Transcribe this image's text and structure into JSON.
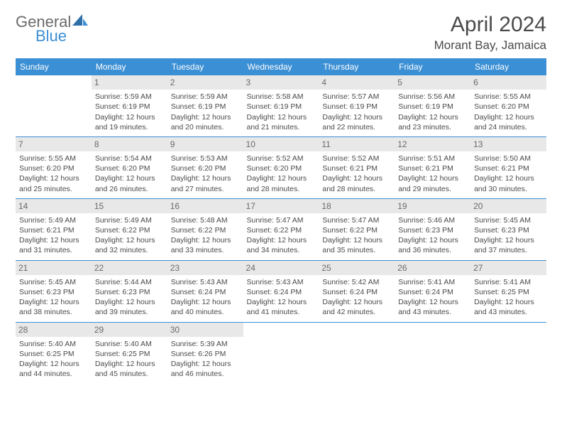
{
  "brand": {
    "word1": "General",
    "word2": "Blue"
  },
  "title": "April 2024",
  "location": "Morant Bay, Jamaica",
  "colors": {
    "header_bg": "#3b8fd4",
    "header_text": "#ffffff",
    "daynum_bg": "#e8e8e8",
    "daynum_text": "#6a6a6a",
    "cell_border": "#3b8fd4",
    "body_text": "#4a4a4a",
    "logo_gray": "#6a6a6a",
    "logo_blue": "#3b8fd4",
    "background": "#ffffff"
  },
  "typography": {
    "title_fontsize": 30,
    "location_fontsize": 17,
    "dayhead_fontsize": 12,
    "cell_fontsize": 10.5,
    "logo_fontsize": 22
  },
  "weekdays": [
    "Sunday",
    "Monday",
    "Tuesday",
    "Wednesday",
    "Thursday",
    "Friday",
    "Saturday"
  ],
  "grid": [
    [
      {
        "day": "",
        "sunrise": "",
        "sunset": "",
        "daylight": ""
      },
      {
        "day": "1",
        "sunrise": "Sunrise: 5:59 AM",
        "sunset": "Sunset: 6:19 PM",
        "daylight": "Daylight: 12 hours and 19 minutes."
      },
      {
        "day": "2",
        "sunrise": "Sunrise: 5:59 AM",
        "sunset": "Sunset: 6:19 PM",
        "daylight": "Daylight: 12 hours and 20 minutes."
      },
      {
        "day": "3",
        "sunrise": "Sunrise: 5:58 AM",
        "sunset": "Sunset: 6:19 PM",
        "daylight": "Daylight: 12 hours and 21 minutes."
      },
      {
        "day": "4",
        "sunrise": "Sunrise: 5:57 AM",
        "sunset": "Sunset: 6:19 PM",
        "daylight": "Daylight: 12 hours and 22 minutes."
      },
      {
        "day": "5",
        "sunrise": "Sunrise: 5:56 AM",
        "sunset": "Sunset: 6:19 PM",
        "daylight": "Daylight: 12 hours and 23 minutes."
      },
      {
        "day": "6",
        "sunrise": "Sunrise: 5:55 AM",
        "sunset": "Sunset: 6:20 PM",
        "daylight": "Daylight: 12 hours and 24 minutes."
      }
    ],
    [
      {
        "day": "7",
        "sunrise": "Sunrise: 5:55 AM",
        "sunset": "Sunset: 6:20 PM",
        "daylight": "Daylight: 12 hours and 25 minutes."
      },
      {
        "day": "8",
        "sunrise": "Sunrise: 5:54 AM",
        "sunset": "Sunset: 6:20 PM",
        "daylight": "Daylight: 12 hours and 26 minutes."
      },
      {
        "day": "9",
        "sunrise": "Sunrise: 5:53 AM",
        "sunset": "Sunset: 6:20 PM",
        "daylight": "Daylight: 12 hours and 27 minutes."
      },
      {
        "day": "10",
        "sunrise": "Sunrise: 5:52 AM",
        "sunset": "Sunset: 6:20 PM",
        "daylight": "Daylight: 12 hours and 28 minutes."
      },
      {
        "day": "11",
        "sunrise": "Sunrise: 5:52 AM",
        "sunset": "Sunset: 6:21 PM",
        "daylight": "Daylight: 12 hours and 28 minutes."
      },
      {
        "day": "12",
        "sunrise": "Sunrise: 5:51 AM",
        "sunset": "Sunset: 6:21 PM",
        "daylight": "Daylight: 12 hours and 29 minutes."
      },
      {
        "day": "13",
        "sunrise": "Sunrise: 5:50 AM",
        "sunset": "Sunset: 6:21 PM",
        "daylight": "Daylight: 12 hours and 30 minutes."
      }
    ],
    [
      {
        "day": "14",
        "sunrise": "Sunrise: 5:49 AM",
        "sunset": "Sunset: 6:21 PM",
        "daylight": "Daylight: 12 hours and 31 minutes."
      },
      {
        "day": "15",
        "sunrise": "Sunrise: 5:49 AM",
        "sunset": "Sunset: 6:22 PM",
        "daylight": "Daylight: 12 hours and 32 minutes."
      },
      {
        "day": "16",
        "sunrise": "Sunrise: 5:48 AM",
        "sunset": "Sunset: 6:22 PM",
        "daylight": "Daylight: 12 hours and 33 minutes."
      },
      {
        "day": "17",
        "sunrise": "Sunrise: 5:47 AM",
        "sunset": "Sunset: 6:22 PM",
        "daylight": "Daylight: 12 hours and 34 minutes."
      },
      {
        "day": "18",
        "sunrise": "Sunrise: 5:47 AM",
        "sunset": "Sunset: 6:22 PM",
        "daylight": "Daylight: 12 hours and 35 minutes."
      },
      {
        "day": "19",
        "sunrise": "Sunrise: 5:46 AM",
        "sunset": "Sunset: 6:23 PM",
        "daylight": "Daylight: 12 hours and 36 minutes."
      },
      {
        "day": "20",
        "sunrise": "Sunrise: 5:45 AM",
        "sunset": "Sunset: 6:23 PM",
        "daylight": "Daylight: 12 hours and 37 minutes."
      }
    ],
    [
      {
        "day": "21",
        "sunrise": "Sunrise: 5:45 AM",
        "sunset": "Sunset: 6:23 PM",
        "daylight": "Daylight: 12 hours and 38 minutes."
      },
      {
        "day": "22",
        "sunrise": "Sunrise: 5:44 AM",
        "sunset": "Sunset: 6:23 PM",
        "daylight": "Daylight: 12 hours and 39 minutes."
      },
      {
        "day": "23",
        "sunrise": "Sunrise: 5:43 AM",
        "sunset": "Sunset: 6:24 PM",
        "daylight": "Daylight: 12 hours and 40 minutes."
      },
      {
        "day": "24",
        "sunrise": "Sunrise: 5:43 AM",
        "sunset": "Sunset: 6:24 PM",
        "daylight": "Daylight: 12 hours and 41 minutes."
      },
      {
        "day": "25",
        "sunrise": "Sunrise: 5:42 AM",
        "sunset": "Sunset: 6:24 PM",
        "daylight": "Daylight: 12 hours and 42 minutes."
      },
      {
        "day": "26",
        "sunrise": "Sunrise: 5:41 AM",
        "sunset": "Sunset: 6:24 PM",
        "daylight": "Daylight: 12 hours and 43 minutes."
      },
      {
        "day": "27",
        "sunrise": "Sunrise: 5:41 AM",
        "sunset": "Sunset: 6:25 PM",
        "daylight": "Daylight: 12 hours and 43 minutes."
      }
    ],
    [
      {
        "day": "28",
        "sunrise": "Sunrise: 5:40 AM",
        "sunset": "Sunset: 6:25 PM",
        "daylight": "Daylight: 12 hours and 44 minutes."
      },
      {
        "day": "29",
        "sunrise": "Sunrise: 5:40 AM",
        "sunset": "Sunset: 6:25 PM",
        "daylight": "Daylight: 12 hours and 45 minutes."
      },
      {
        "day": "30",
        "sunrise": "Sunrise: 5:39 AM",
        "sunset": "Sunset: 6:26 PM",
        "daylight": "Daylight: 12 hours and 46 minutes."
      },
      {
        "day": "",
        "sunrise": "",
        "sunset": "",
        "daylight": ""
      },
      {
        "day": "",
        "sunrise": "",
        "sunset": "",
        "daylight": ""
      },
      {
        "day": "",
        "sunrise": "",
        "sunset": "",
        "daylight": ""
      },
      {
        "day": "",
        "sunrise": "",
        "sunset": "",
        "daylight": ""
      }
    ]
  ]
}
